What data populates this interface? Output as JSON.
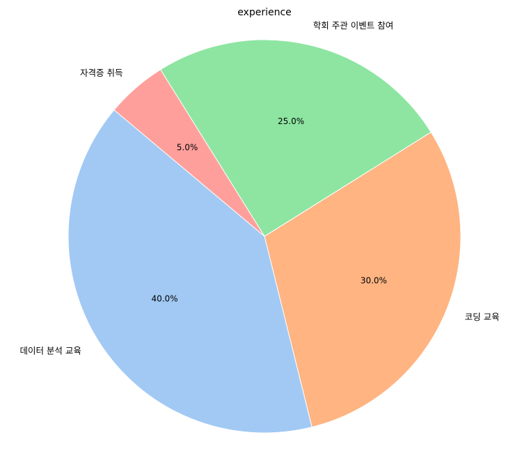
{
  "chart_data": {
    "type": "pie",
    "title": "experience",
    "categories": [
      "데이터 분석 교육",
      "코딩 교육",
      "학회 주관 이벤트 참여",
      "자격증 취득"
    ],
    "values": [
      40,
      30,
      25,
      5
    ],
    "percent_labels": [
      "40.0%",
      "30.0%",
      "25.0%",
      "5.0%"
    ],
    "colors": [
      "#a1c9f4",
      "#ffb482",
      "#8de5a1",
      "#ff9f9b"
    ],
    "start_angle_deg": 140,
    "direction": "counterclockwise",
    "legend": "none"
  }
}
